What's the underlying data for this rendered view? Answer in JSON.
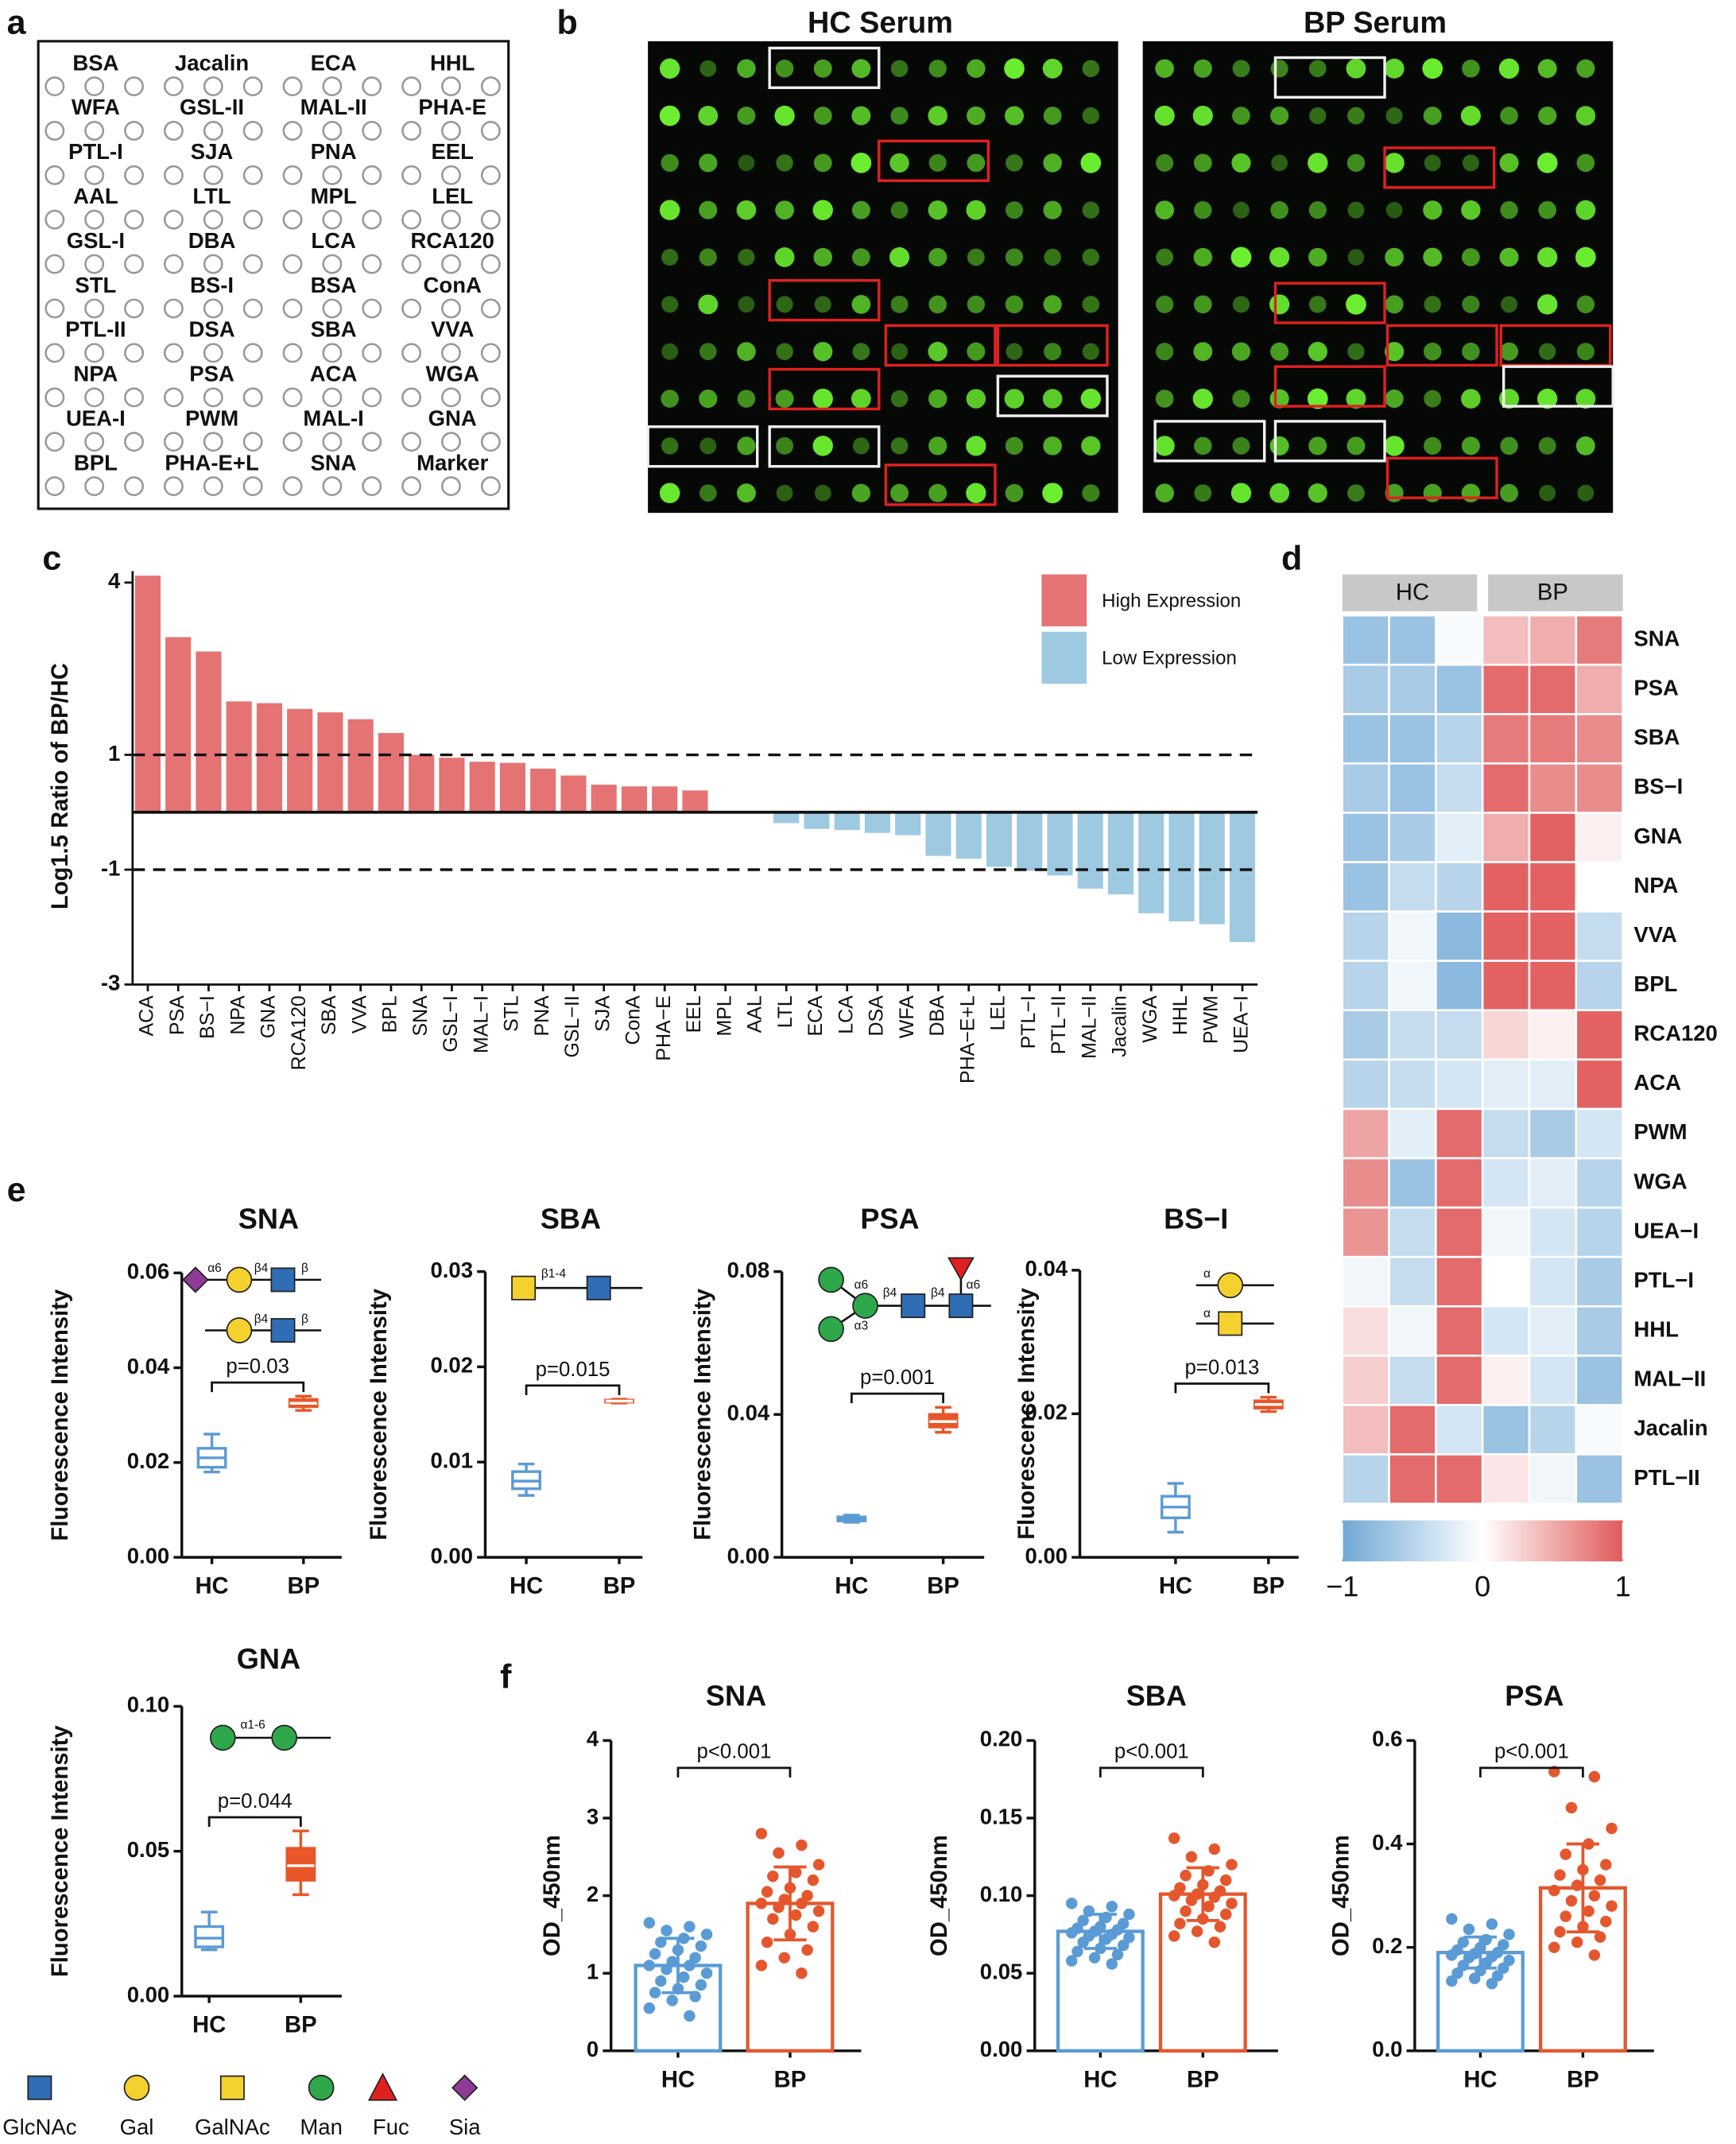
{
  "panel_labels": [
    "a",
    "b",
    "c",
    "d",
    "e",
    "f"
  ],
  "lectin_layout": {
    "rows": [
      [
        "BSA",
        "Jacalin",
        "ECA",
        "HHL"
      ],
      [
        "WFA",
        "GSL-II",
        "MAL-II",
        "PHA-E"
      ],
      [
        "PTL-I",
        "SJA",
        "PNA",
        "EEL"
      ],
      [
        "AAL",
        "LTL",
        "MPL",
        "LEL"
      ],
      [
        "GSL-I",
        "DBA",
        "LCA",
        "RCA120"
      ],
      [
        "STL",
        "BS-I",
        "BSA",
        "ConA"
      ],
      [
        "PTL-II",
        "DSA",
        "SBA",
        "VVA"
      ],
      [
        "NPA",
        "PSA",
        "ACA",
        "WGA"
      ],
      [
        "UEA-I",
        "PWM",
        "MAL-I",
        "GNA"
      ],
      [
        "BPL",
        "PHA-E+L",
        "SNA",
        "Marker"
      ]
    ]
  },
  "microarray": {
    "titles": [
      "HC Serum",
      "BP Serum"
    ]
  },
  "chart_data": [
    {
      "type": "bar",
      "ylabel": "Log1.5 Ratio of BP/HC",
      "categories": [
        "ACA",
        "PSA",
        "BS−I",
        "NPA",
        "GNA",
        "RCA120",
        "SBA",
        "VVA",
        "BPL",
        "SNA",
        "GSL−I",
        "MAL−I",
        "STL",
        "PNA",
        "GSL−II",
        "SJA",
        "ConA",
        "PHA−E",
        "EEL",
        "MPL",
        "AAL",
        "LTL",
        "ECA",
        "LCA",
        "DSA",
        "WFA",
        "DBA",
        "PHA−E+L",
        "LEL",
        "PTL−I",
        "PTL−II",
        "MAL−II",
        "Jacalin",
        "WGA",
        "HHL",
        "PWM",
        "UEA−I"
      ],
      "values": [
        4.12,
        3.05,
        2.8,
        1.93,
        1.9,
        1.8,
        1.74,
        1.62,
        1.38,
        1.0,
        0.95,
        0.88,
        0.86,
        0.76,
        0.64,
        0.48,
        0.45,
        0.45,
        0.38,
        0.02,
        0,
        -0.19,
        -0.29,
        -0.31,
        -0.36,
        -0.4,
        -0.76,
        -0.81,
        -0.95,
        -1.02,
        -1.1,
        -1.33,
        -1.43,
        -1.76,
        -1.9,
        -1.95,
        -2.26
      ],
      "ylim": [
        -3,
        4.2
      ],
      "yticks": [
        -3,
        -1,
        1,
        4
      ],
      "reference_lines": [
        1,
        -1
      ],
      "legend": [
        {
          "name": "High Expression",
          "color": "#e57373"
        },
        {
          "name": "Low  Expression",
          "color": "#9ecae1"
        }
      ],
      "legend_position": "upper right"
    },
    {
      "type": "heatmap",
      "column_groups": [
        "HC",
        "BP"
      ],
      "columns_per_group": 3,
      "rows": [
        "SNA",
        "PSA",
        "SBA",
        "BS−I",
        "GNA",
        "NPA",
        "VVA",
        "BPL",
        "RCA120",
        "ACA",
        "PWM",
        "WGA",
        "UEA−I",
        "PTL−I",
        "HHL",
        "MAL−II",
        "Jacalin",
        "PTL−II"
      ],
      "values": [
        [
          -0.7,
          -0.7,
          -0.05,
          0.4,
          0.5,
          0.8
        ],
        [
          -0.6,
          -0.6,
          -0.7,
          0.9,
          0.9,
          0.5
        ],
        [
          -0.7,
          -0.7,
          -0.5,
          0.8,
          0.8,
          0.7
        ],
        [
          -0.6,
          -0.7,
          -0.4,
          0.9,
          0.7,
          0.7
        ],
        [
          -0.7,
          -0.6,
          -0.2,
          0.5,
          0.95,
          0.1
        ],
        [
          -0.7,
          -0.4,
          -0.5,
          0.95,
          0.95,
          0
        ],
        [
          -0.5,
          -0.1,
          -0.8,
          0.95,
          0.95,
          -0.4
        ],
        [
          -0.5,
          -0.1,
          -0.8,
          0.95,
          0.95,
          -0.5
        ],
        [
          -0.6,
          -0.4,
          -0.4,
          0.25,
          0.1,
          0.95
        ],
        [
          -0.5,
          -0.4,
          -0.3,
          -0.2,
          -0.2,
          0.95
        ],
        [
          0.55,
          -0.2,
          0.9,
          -0.4,
          -0.6,
          -0.3
        ],
        [
          0.7,
          -0.7,
          0.9,
          -0.3,
          -0.2,
          -0.5
        ],
        [
          0.65,
          -0.4,
          0.9,
          -0.1,
          -0.3,
          -0.5
        ],
        [
          -0.1,
          -0.4,
          0.9,
          0,
          -0.3,
          -0.6
        ],
        [
          0.2,
          -0.1,
          0.9,
          -0.3,
          -0.2,
          -0.6
        ],
        [
          0.3,
          -0.4,
          0.9,
          0.1,
          -0.3,
          -0.7
        ],
        [
          0.4,
          0.9,
          -0.3,
          -0.7,
          -0.5,
          -0.05
        ],
        [
          -0.5,
          0.9,
          0.9,
          0.15,
          -0.1,
          -0.7
        ]
      ],
      "colormap": [
        "#6fa8d6",
        "#ffffff",
        "#e05a5a"
      ],
      "clim": [
        -1,
        1
      ],
      "cticks": [
        {
          "value": -1,
          "label": "−1"
        },
        0,
        1
      ]
    },
    {
      "type": "box",
      "title": "SNA",
      "ylabel": "Fluorescence Intensity",
      "categories": [
        "HC",
        "BP"
      ],
      "colors": [
        "#5b9bd5",
        "#e8562a"
      ],
      "boxes": [
        {
          "min": 0.018,
          "q1": 0.019,
          "median": 0.021,
          "q3": 0.023,
          "max": 0.026
        },
        {
          "min": 0.031,
          "q1": 0.0318,
          "median": 0.0325,
          "q3": 0.0333,
          "max": 0.034
        }
      ],
      "ylim": [
        0,
        0.06
      ],
      "yticks": [
        {
          "value": 0,
          "label": "0.00"
        },
        {
          "value": 0.02,
          "label": "0.02"
        },
        {
          "value": 0.04,
          "label": "0.04"
        },
        {
          "value": 0.06,
          "label": "0.06"
        }
      ],
      "p_label": "p=0.03",
      "glycan_labels": [
        "α6",
        "β4",
        "β",
        "β4",
        "β"
      ]
    },
    {
      "type": "box",
      "title": "SBA",
      "ylabel": "Fluorescence Intensity",
      "categories": [
        "HC",
        "BP"
      ],
      "colors": [
        "#5b9bd5",
        "#e8562a"
      ],
      "boxes": [
        {
          "min": 0.0065,
          "q1": 0.0072,
          "median": 0.008,
          "q3": 0.009,
          "max": 0.0098
        },
        {
          "min": 0.0162,
          "q1": 0.0163,
          "median": 0.0164,
          "q3": 0.0165,
          "max": 0.0166
        }
      ],
      "ylim": [
        0,
        0.03
      ],
      "yticks": [
        {
          "value": 0,
          "label": "0.00"
        },
        {
          "value": 0.01,
          "label": "0.01"
        },
        {
          "value": 0.02,
          "label": "0.02"
        },
        {
          "value": 0.03,
          "label": "0.03"
        }
      ],
      "p_label": "p=0.015",
      "glycan_labels": [
        "β1-4"
      ]
    },
    {
      "type": "box",
      "title": "PSA",
      "ylabel": "Fluorescence Intensity",
      "categories": [
        "HC",
        "BP"
      ],
      "colors": [
        "#5b9bd5",
        "#e8562a"
      ],
      "boxes": [
        {
          "min": 0.0098,
          "q1": 0.0102,
          "median": 0.0108,
          "q3": 0.0113,
          "max": 0.0118
        },
        {
          "min": 0.035,
          "q1": 0.0365,
          "median": 0.038,
          "q3": 0.04,
          "max": 0.042
        }
      ],
      "ylim": [
        0,
        0.08
      ],
      "yticks": [
        {
          "value": 0,
          "label": "0.00"
        },
        {
          "value": 0.04,
          "label": "0.04"
        },
        {
          "value": 0.08,
          "label": "0.08"
        }
      ],
      "p_label": "p=0.001",
      "glycan_labels": [
        "α6",
        "α3",
        "β4",
        "β4",
        "α6"
      ]
    },
    {
      "type": "box",
      "title": "BS−I",
      "ylabel": "Fluorescence Intensity",
      "categories": [
        "HC",
        "BP"
      ],
      "colors": [
        "#5b9bd5",
        "#e8562a"
      ],
      "boxes": [
        {
          "min": 0.0035,
          "q1": 0.0055,
          "median": 0.007,
          "q3": 0.0085,
          "max": 0.0103
        },
        {
          "min": 0.0203,
          "q1": 0.0208,
          "median": 0.0213,
          "q3": 0.0218,
          "max": 0.0223
        }
      ],
      "ylim": [
        0,
        0.04
      ],
      "yticks": [
        {
          "value": 0,
          "label": "0.00"
        },
        {
          "value": 0.02,
          "label": "0.02"
        },
        {
          "value": 0.04,
          "label": "0.04"
        }
      ],
      "p_label": "p=0.013",
      "glycan_labels": [
        "α",
        "α"
      ]
    },
    {
      "type": "box",
      "title": "GNA",
      "ylabel": "Fluorescence Intensity",
      "categories": [
        "HC",
        "BP"
      ],
      "colors": [
        "#5b9bd5",
        "#e8562a"
      ],
      "boxes": [
        {
          "min": 0.016,
          "q1": 0.017,
          "median": 0.02,
          "q3": 0.024,
          "max": 0.029
        },
        {
          "min": 0.035,
          "q1": 0.04,
          "median": 0.045,
          "q3": 0.051,
          "max": 0.057
        }
      ],
      "ylim": [
        0,
        0.1
      ],
      "yticks": [
        {
          "value": 0,
          "label": "0.00"
        },
        {
          "value": 0.05,
          "label": "0.05"
        },
        {
          "value": 0.1,
          "label": "0.10"
        }
      ],
      "p_label": "p=0.044",
      "glycan_labels": [
        "α1-6"
      ]
    },
    {
      "type": "bar_scatter",
      "title": "SNA",
      "ylabel": "OD_450nm",
      "categories": [
        "HC",
        "BP"
      ],
      "colors": [
        "#5b9bd5",
        "#e4572e"
      ],
      "means": [
        1.1,
        1.9
      ],
      "errors": [
        0.35,
        0.47
      ],
      "points": [
        [
          1.65,
          1.6,
          1.55,
          1.5,
          1.45,
          1.4,
          1.35,
          1.3,
          1.25,
          1.2,
          1.15,
          1.1,
          1.1,
          1.05,
          1.0,
          0.95,
          0.9,
          0.85,
          0.8,
          0.75,
          0.7,
          0.65,
          0.55,
          0.45
        ],
        [
          2.8,
          2.65,
          2.55,
          2.4,
          2.3,
          2.25,
          2.2,
          2.1,
          2.05,
          2.0,
          1.95,
          1.9,
          1.9,
          1.85,
          1.8,
          1.75,
          1.7,
          1.6,
          1.5,
          1.4,
          1.3,
          1.2,
          1.1,
          1.0
        ]
      ],
      "ylim": [
        0,
        4
      ],
      "yticks": [
        0,
        1,
        2,
        3,
        4
      ],
      "p_label": "p<0.001"
    },
    {
      "type": "bar_scatter",
      "title": "SBA",
      "ylabel": "OD_450nm",
      "categories": [
        "HC",
        "BP"
      ],
      "colors": [
        "#5b9bd5",
        "#e4572e"
      ],
      "means": [
        0.077,
        0.101
      ],
      "errors": [
        0.011,
        0.017
      ],
      "points": [
        [
          0.095,
          0.093,
          0.09,
          0.088,
          0.086,
          0.084,
          0.082,
          0.08,
          0.079,
          0.078,
          0.077,
          0.076,
          0.075,
          0.074,
          0.073,
          0.072,
          0.07,
          0.068,
          0.066,
          0.064,
          0.062,
          0.06,
          0.058,
          0.056
        ],
        [
          0.137,
          0.13,
          0.125,
          0.12,
          0.116,
          0.113,
          0.11,
          0.107,
          0.105,
          0.103,
          0.101,
          0.1,
          0.099,
          0.097,
          0.095,
          0.093,
          0.09,
          0.088,
          0.085,
          0.082,
          0.08,
          0.077,
          0.074,
          0.07
        ]
      ],
      "ylim": [
        0,
        0.2
      ],
      "yticks": [
        {
          "value": 0,
          "label": "0.00"
        },
        {
          "value": 0.05,
          "label": "0.05"
        },
        {
          "value": 0.1,
          "label": "0.10"
        },
        {
          "value": 0.15,
          "label": "0.15"
        },
        {
          "value": 0.2,
          "label": "0.20"
        }
      ],
      "p_label": "p<0.001"
    },
    {
      "type": "bar_scatter",
      "title": "PSA",
      "ylabel": "OD_450nm",
      "categories": [
        "HC",
        "BP"
      ],
      "colors": [
        "#5b9bd5",
        "#e4572e"
      ],
      "means": [
        0.19,
        0.315
      ],
      "errors": [
        0.03,
        0.085
      ],
      "points": [
        [
          0.255,
          0.245,
          0.235,
          0.225,
          0.215,
          0.21,
          0.205,
          0.2,
          0.195,
          0.19,
          0.188,
          0.185,
          0.182,
          0.18,
          0.175,
          0.17,
          0.165,
          0.16,
          0.155,
          0.15,
          0.145,
          0.14,
          0.135,
          0.13
        ],
        [
          0.54,
          0.53,
          0.47,
          0.43,
          0.4,
          0.38,
          0.36,
          0.35,
          0.34,
          0.33,
          0.32,
          0.31,
          0.3,
          0.29,
          0.28,
          0.27,
          0.26,
          0.25,
          0.24,
          0.23,
          0.22,
          0.21,
          0.2,
          0.185
        ]
      ],
      "ylim": [
        0,
        0.6
      ],
      "yticks": [
        {
          "value": 0,
          "label": "0.0"
        },
        {
          "value": 0.2,
          "label": "0.2"
        },
        {
          "value": 0.4,
          "label": "0.4"
        },
        {
          "value": 0.6,
          "label": "0.6"
        }
      ],
      "p_label": "p<0.001"
    }
  ],
  "glycan_legend": [
    "GlcNAc",
    "Gal",
    "GalNAc",
    "Man",
    "Fuc",
    "Sia"
  ]
}
